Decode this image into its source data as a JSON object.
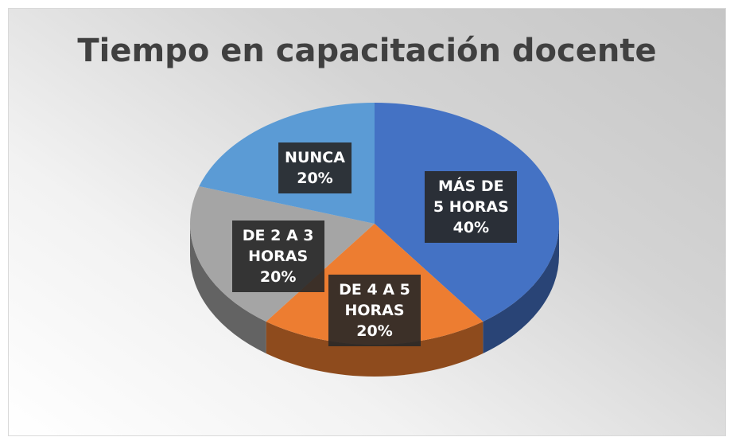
{
  "chart_data": {
    "type": "pie",
    "title": "Tiempo en capacitación docente",
    "categories": [
      "MÁS DE 5 HORAS",
      "DE 4 A 5 HORAS",
      "DE 2 A 3 HORAS",
      "NUNCA"
    ],
    "values": [
      40,
      20,
      20,
      20
    ],
    "value_labels": [
      "40%",
      "20%",
      "20%",
      "20%"
    ],
    "colors": [
      "#4472c4",
      "#ed7d31",
      "#a5a5a5",
      "#5b9bd5"
    ]
  }
}
